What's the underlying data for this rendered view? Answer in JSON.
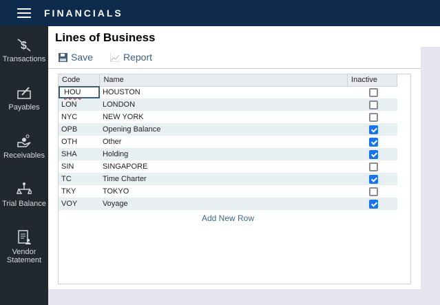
{
  "app": {
    "title": "FINANCIALS"
  },
  "sidebar": {
    "items": [
      {
        "label": "Transactions",
        "icon": "dollar-transfer-icon"
      },
      {
        "label": "Payables",
        "icon": "check-sign-icon"
      },
      {
        "label": "Receivables",
        "icon": "hand-coins-icon"
      },
      {
        "label": "Trial Balance",
        "icon": "scales-icon"
      },
      {
        "label": "Vendor Statement",
        "icon": "statement-person-icon"
      }
    ]
  },
  "page": {
    "title": "Lines of Business"
  },
  "toolbar": {
    "save_label": "Save",
    "report_label": "Report"
  },
  "table": {
    "headers": [
      "Code",
      "Name",
      "Inactive"
    ],
    "rows": [
      {
        "code": "HOU",
        "name": "HOUSTON",
        "inactive": false
      },
      {
        "code": "LON",
        "name": "LONDON",
        "inactive": false
      },
      {
        "code": "NYC",
        "name": "NEW YORK",
        "inactive": false
      },
      {
        "code": "OPB",
        "name": "Opening Balance",
        "inactive": true
      },
      {
        "code": "OTH",
        "name": "Other",
        "inactive": true
      },
      {
        "code": "SHA",
        "name": "Holding",
        "inactive": true
      },
      {
        "code": "SIN",
        "name": "SINGAPORE",
        "inactive": false
      },
      {
        "code": "TC",
        "name": "Time Charter",
        "inactive": true
      },
      {
        "code": "TKY",
        "name": "TOKYO",
        "inactive": false
      },
      {
        "code": "VOY",
        "name": "Voyage",
        "inactive": true
      }
    ],
    "add_row_label": "Add New Row"
  }
}
